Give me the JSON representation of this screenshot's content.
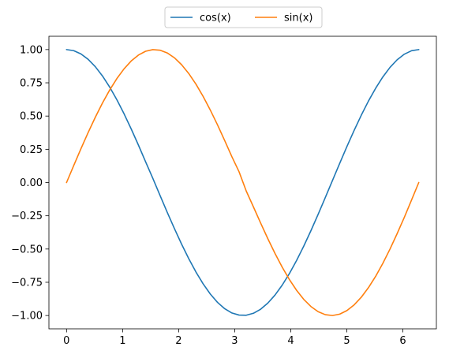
{
  "chart_data": {
    "type": "line",
    "title": "",
    "xlabel": "",
    "ylabel": "",
    "xlim": [
      -0.3142,
      6.5974
    ],
    "ylim": [
      -1.1,
      1.1
    ],
    "xticks": [
      0,
      1,
      2,
      3,
      4,
      5,
      6
    ],
    "xtick_labels": [
      "0",
      "1",
      "2",
      "3",
      "4",
      "5",
      "6"
    ],
    "yticks": [
      -1.0,
      -0.75,
      -0.5,
      -0.25,
      0.0,
      0.25,
      0.5,
      0.75,
      1.0
    ],
    "ytick_labels": [
      "−1.00",
      "−0.75",
      "−0.50",
      "−0.25",
      "0.00",
      "0.25",
      "0.50",
      "0.75",
      "1.00"
    ],
    "grid": false,
    "legend": {
      "placement": "upper-center, above plot",
      "columns": 2
    },
    "x": [
      0.0,
      0.1282,
      0.2565,
      0.3847,
      0.5129,
      0.6411,
      0.7694,
      0.8976,
      1.0258,
      1.1541,
      1.2823,
      1.4105,
      1.5387,
      1.667,
      1.7952,
      1.9234,
      2.0517,
      2.1799,
      2.3081,
      2.4363,
      2.5646,
      2.6928,
      2.821,
      2.9493,
      3.0775,
      3.2057,
      3.3339,
      3.4622,
      3.5904,
      3.7186,
      3.8468,
      3.9751,
      4.1033,
      4.2315,
      4.3598,
      4.488,
      4.6162,
      4.7444,
      4.8727,
      5.0009,
      5.1291,
      5.2574,
      5.3856,
      5.5138,
      5.642,
      5.7703,
      5.8985,
      6.0267,
      6.155,
      6.2832
    ],
    "series": [
      {
        "name": "cos(x)",
        "color": "#1f77b4",
        "values": [
          1.0,
          0.9918,
          0.9673,
          0.9269,
          0.8713,
          0.8014,
          0.7181,
          0.6229,
          0.5171,
          0.4026,
          0.2817,
          0.156,
          0.032,
          -0.096,
          -0.2225,
          -0.3453,
          -0.4625,
          -0.5722,
          -0.6725,
          -0.7617,
          -0.8383,
          -0.901,
          -0.9487,
          -0.9808,
          -0.9966,
          -0.9979,
          -0.9831,
          -0.9526,
          -0.9067,
          -0.8461,
          -0.7716,
          -0.6846,
          -0.5863,
          -0.478,
          -0.3617,
          -0.2393,
          -0.1126,
          0.016,
          0.1441,
          0.2701,
          0.3912,
          0.506,
          0.6126,
          0.7088,
          0.794,
          0.8661,
          0.9236,
          0.9655,
          0.9914,
          1.0
        ]
      },
      {
        "name": "sin(x)",
        "color": "#ff7f0e",
        "values": [
          0.0,
          0.1279,
          0.2537,
          0.3753,
          0.4907,
          0.5981,
          0.6957,
          0.7818,
          0.8551,
          0.9144,
          0.9587,
          0.9874,
          0.9995,
          0.9954,
          0.9749,
          0.9385,
          0.8866,
          0.8201,
          0.7401,
          0.648,
          0.5451,
          0.4339,
          0.3162,
          0.1946,
          0.0813,
          -0.0637,
          -0.183,
          -0.3045,
          -0.4218,
          -0.533,
          -0.636,
          -0.729,
          -0.8102,
          -0.8784,
          -0.9323,
          -0.9711,
          -0.9937,
          -0.9999,
          -0.9896,
          -0.9628,
          -0.9203,
          -0.8626,
          -0.7904,
          -0.7055,
          -0.6079,
          -0.4999,
          -0.3833,
          -0.2603,
          -0.1308,
          0.0
        ]
      }
    ]
  }
}
